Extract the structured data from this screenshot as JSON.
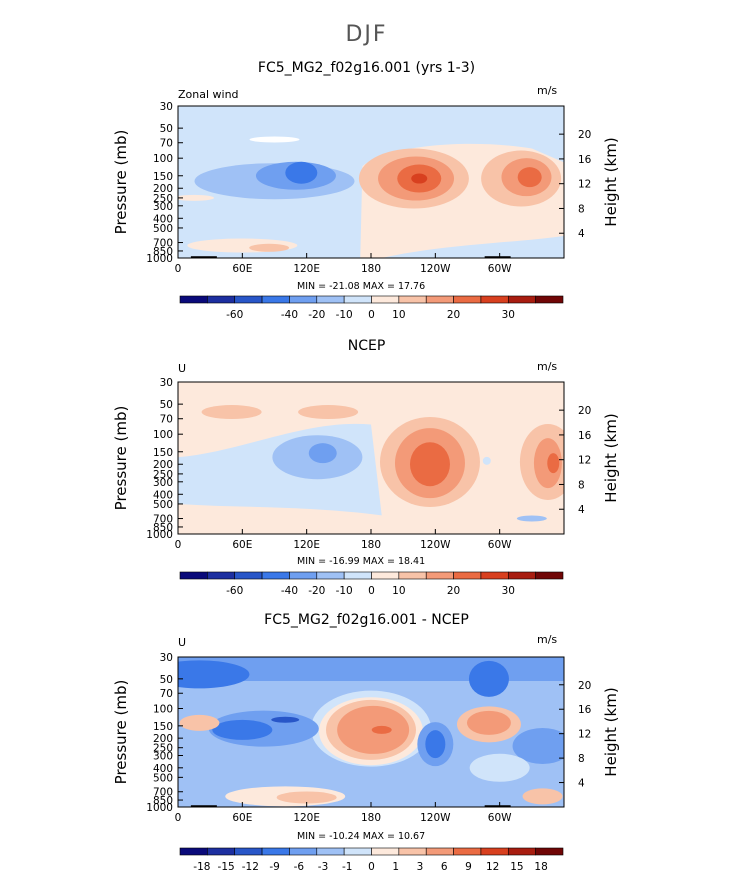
{
  "page_title": "DJF",
  "colors": {
    "cb1": [
      "#0a0a7a",
      "#1d2fa0",
      "#2856c8",
      "#3a78e8",
      "#6f9ff0",
      "#9fc1f5",
      "#d0e4fa",
      "#fde9dc",
      "#f8c3a8",
      "#f39a78",
      "#ea6b43",
      "#d8401f",
      "#a81d10",
      "#700606"
    ],
    "cb3": [
      "#0a0a7a",
      "#1d2fa0",
      "#2856c8",
      "#3a78e8",
      "#6f9ff0",
      "#9fc1f5",
      "#d0e4fa",
      "#fde9dc",
      "#f8c3a8",
      "#f39a78",
      "#ea6b43",
      "#d8401f",
      "#a81d10",
      "#700606"
    ]
  },
  "chart_data": [
    {
      "type": "contour",
      "title": "FC5_MG2_f02g16.001 (yrs 1-3)",
      "corner_left": "Zonal wind",
      "corner_right": "m/s",
      "ylabel": "Pressure (mb)",
      "y2label": "Height (km)",
      "yticks": [
        "30",
        "50",
        "70",
        "100",
        "150",
        "200",
        "250",
        "300",
        "400",
        "500",
        "700",
        "850",
        "1000"
      ],
      "y2ticks": [
        "20",
        "16",
        "12",
        "8",
        "4"
      ],
      "xticks": [
        "0",
        "60E",
        "120E",
        "180",
        "120W",
        "60W"
      ],
      "minmax": "MIN = -21.08   MAX = 17.76",
      "colorbar_labels": [
        "-60",
        "-40",
        "-20",
        "-10",
        "0",
        "10",
        "20",
        "30"
      ],
      "min": -21.08,
      "max": 17.76
    },
    {
      "type": "contour",
      "title": "NCEP",
      "corner_left": "U",
      "corner_right": "m/s",
      "ylabel": "Pressure (mb)",
      "y2label": "Height (km)",
      "yticks": [
        "30",
        "50",
        "70",
        "100",
        "150",
        "200",
        "250",
        "300",
        "400",
        "500",
        "700",
        "850",
        "1000"
      ],
      "y2ticks": [
        "20",
        "16",
        "12",
        "8",
        "4"
      ],
      "xticks": [
        "0",
        "60E",
        "120E",
        "180",
        "120W",
        "60W"
      ],
      "minmax": "MIN = -16.99   MAX = 18.41",
      "colorbar_labels": [
        "-60",
        "-40",
        "-20",
        "-10",
        "0",
        "10",
        "20",
        "30"
      ],
      "min": -16.99,
      "max": 18.41
    },
    {
      "type": "contour",
      "title": "FC5_MG2_f02g16.001 - NCEP",
      "corner_left": "U",
      "corner_right": "m/s",
      "ylabel": "Pressure (mb)",
      "y2label": "Height (km)",
      "yticks": [
        "30",
        "50",
        "70",
        "100",
        "150",
        "200",
        "250",
        "300",
        "400",
        "500",
        "700",
        "850",
        "1000"
      ],
      "y2ticks": [
        "20",
        "16",
        "12",
        "8",
        "4"
      ],
      "xticks": [
        "0",
        "60E",
        "120E",
        "180",
        "120W",
        "60W"
      ],
      "minmax": "MIN = -10.24   MAX = 10.67",
      "colorbar_labels": [
        "-18",
        "-15",
        "-12",
        "-9",
        "-6",
        "-3",
        "-1",
        "0",
        "1",
        "3",
        "6",
        "9",
        "12",
        "15",
        "18"
      ],
      "min": -10.24,
      "max": 10.67
    }
  ]
}
